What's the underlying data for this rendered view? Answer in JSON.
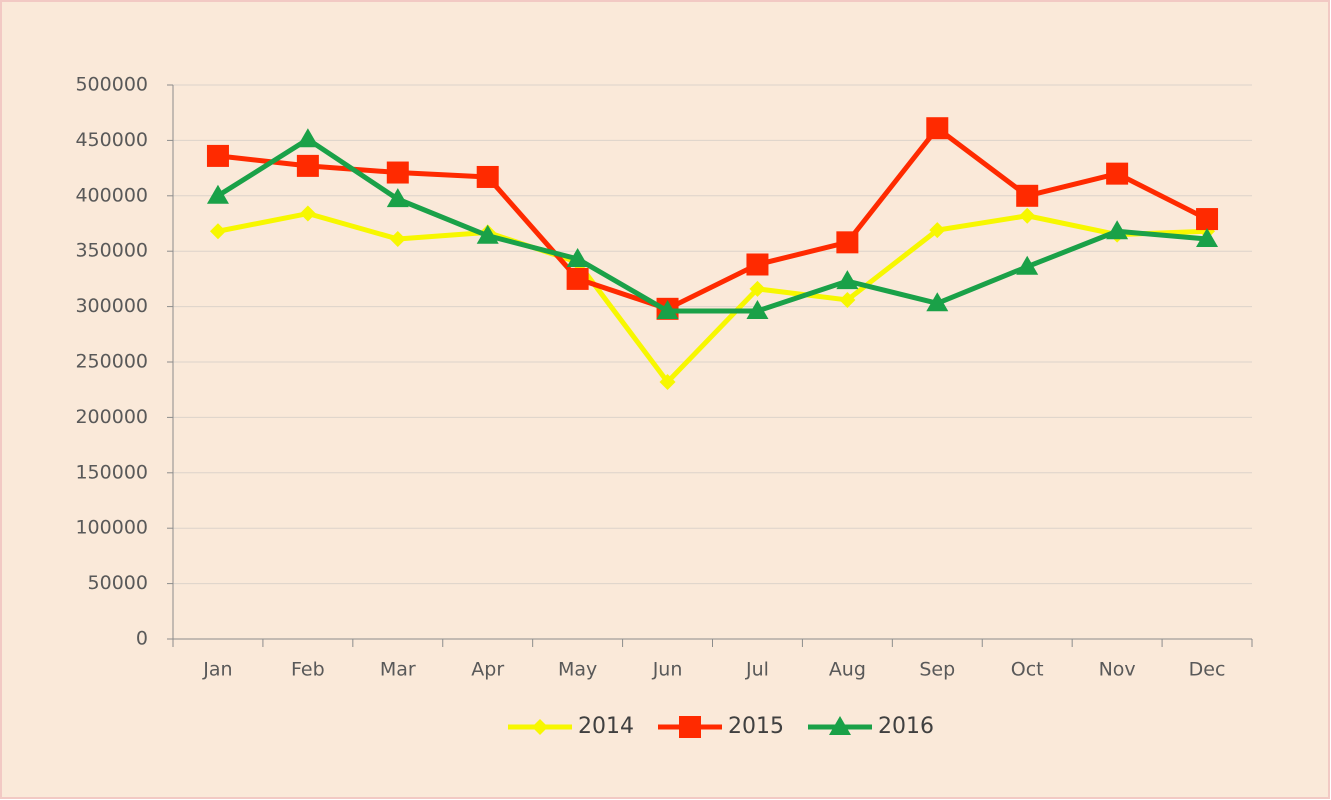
{
  "chart_data": {
    "type": "line",
    "categories": [
      "Jan",
      "Feb",
      "Mar",
      "Apr",
      "May",
      "Jun",
      "Jul",
      "Aug",
      "Sep",
      "Oct",
      "Nov",
      "Dec"
    ],
    "series": [
      {
        "name": "2014",
        "color": "#f7f700",
        "marker": "diamond",
        "values": [
          368000,
          384000,
          361000,
          367000,
          340000,
          232000,
          316000,
          306000,
          369000,
          382000,
          365000,
          368000
        ]
      },
      {
        "name": "2015",
        "color": "#ff2a00",
        "marker": "square",
        "values": [
          436000,
          427000,
          421000,
          417000,
          325000,
          298000,
          338000,
          358000,
          461000,
          400000,
          420000,
          379000
        ]
      },
      {
        "name": "2016",
        "color": "#1aa148",
        "marker": "triangle",
        "values": [
          400000,
          451000,
          397000,
          364000,
          343000,
          296000,
          296000,
          323000,
          303000,
          336000,
          368000,
          361000
        ]
      }
    ],
    "ylim": [
      0,
      500000
    ],
    "yticks": [
      0,
      50000,
      100000,
      150000,
      200000,
      250000,
      300000,
      350000,
      400000,
      450000,
      500000
    ],
    "grid": true,
    "legend": "bottom"
  }
}
